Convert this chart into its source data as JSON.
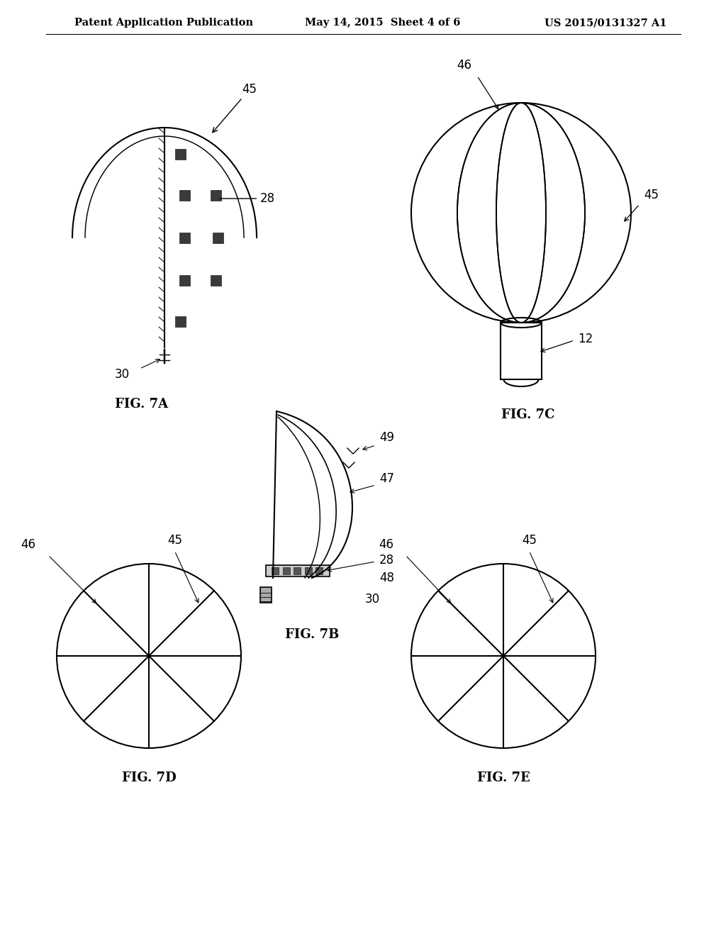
{
  "background_color": "#ffffff",
  "header_left": "Patent Application Publication",
  "header_mid": "May 14, 2015  Sheet 4 of 6",
  "header_right": "US 2015/0131327 A1",
  "line_color": "#000000",
  "text_color": "#000000",
  "lw": 1.5,
  "fig7a_label": "FIG. 7A",
  "fig7b_label": "FIG. 7B",
  "fig7c_label": "FIG. 7C",
  "fig7d_label": "FIG. 7D",
  "fig7e_label": "FIG. 7E"
}
